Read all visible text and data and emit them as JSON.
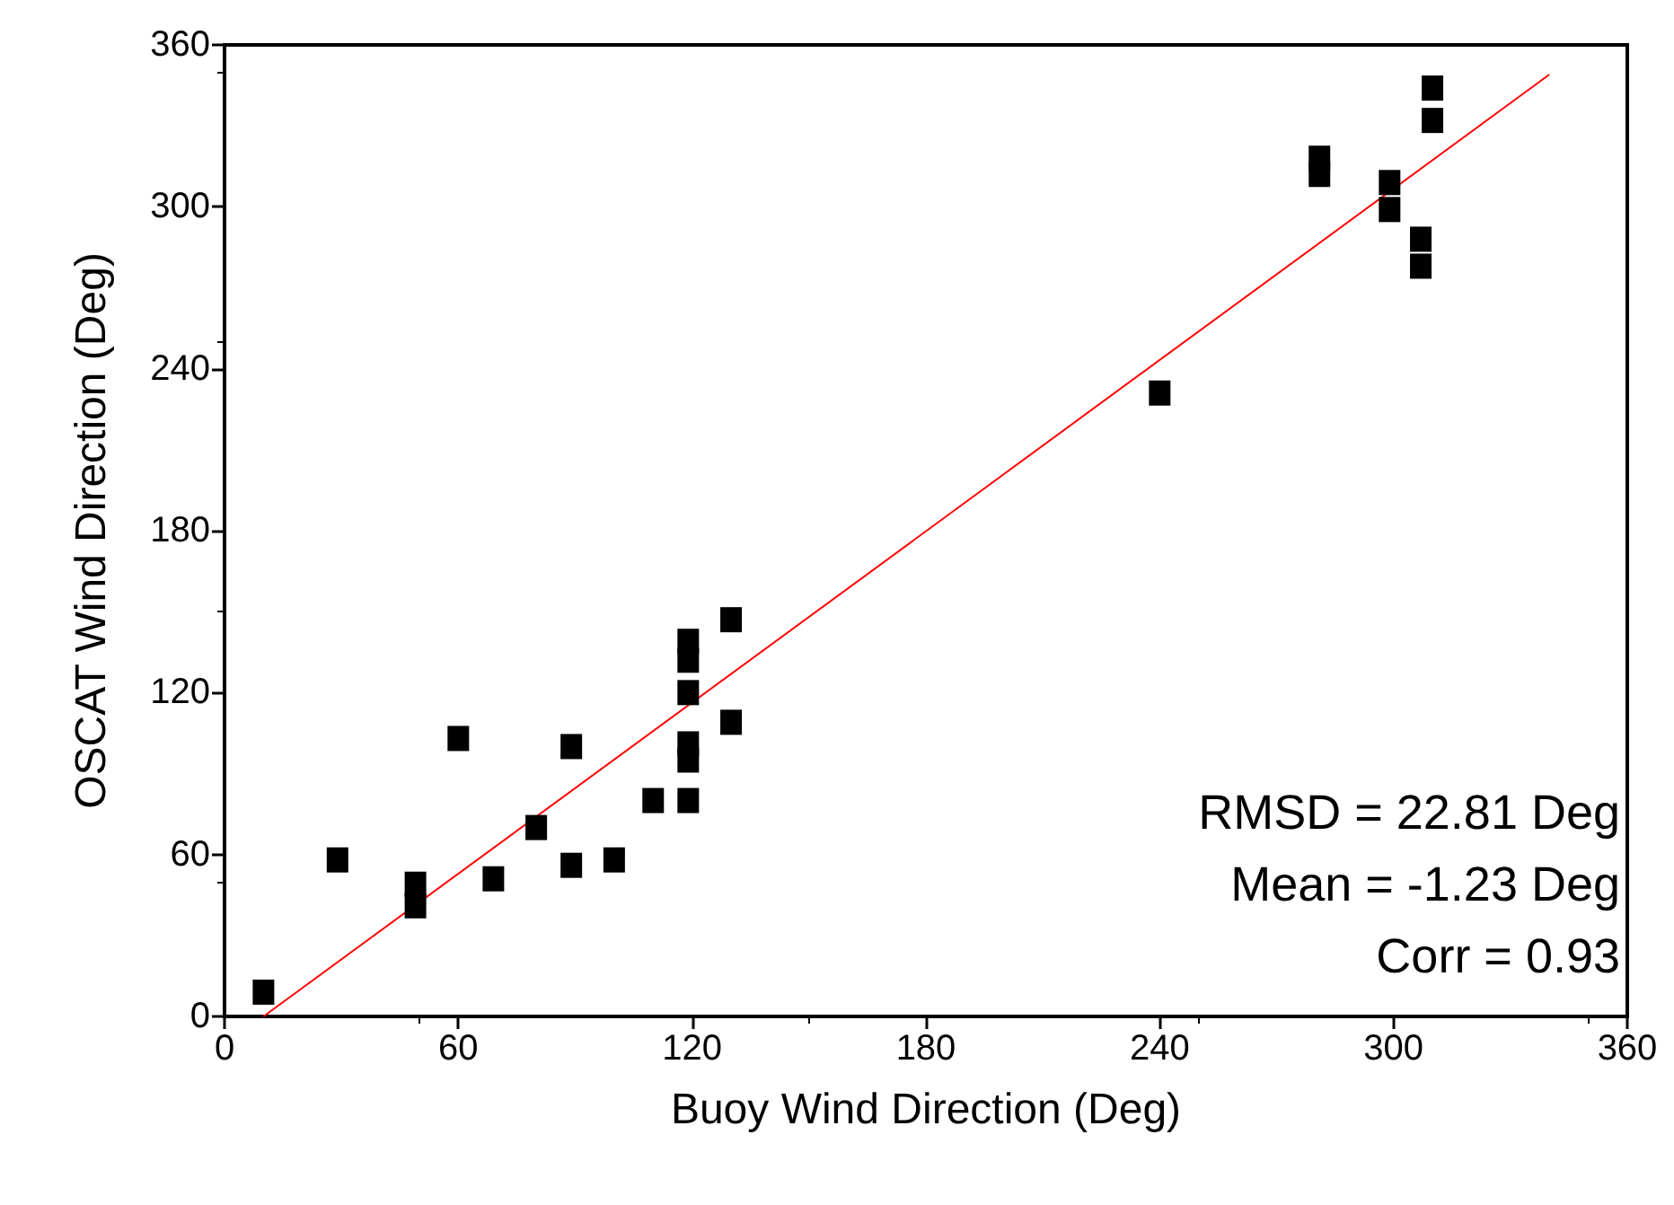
{
  "chart_data": {
    "type": "scatter",
    "xlabel": "Buoy Wind Direction (Deg)",
    "ylabel": "OSCAT Wind Direction (Deg)",
    "xlim": [
      0,
      360
    ],
    "xticks": [
      0,
      60,
      120,
      180,
      240,
      300,
      360
    ],
    "ylim": [
      0,
      360
    ],
    "yticks": [
      0,
      60,
      120,
      180,
      240,
      300,
      360
    ],
    "grid": false,
    "series": [
      {
        "marker": "square",
        "color": "#000000",
        "x": [
          10,
          29,
          49,
          49,
          60,
          69,
          80,
          89,
          89,
          100,
          110,
          119,
          119,
          119,
          119,
          119,
          119,
          130,
          130,
          240,
          281,
          281,
          299,
          299,
          307,
          307,
          310,
          310
        ],
        "values": [
          9,
          58,
          49,
          41,
          103,
          51,
          70,
          100,
          56,
          58,
          80,
          80,
          101,
          95,
          120,
          139,
          132,
          109,
          147,
          231,
          318,
          312,
          309,
          299,
          288,
          278,
          344,
          332
        ]
      },
      {
        "type": "line",
        "color": "#ff0000",
        "x": [
          10,
          340
        ],
        "values": [
          0,
          349
        ]
      }
    ],
    "annotations": [
      "RMSD = 22.81 Deg",
      "Mean = -1.23 Deg",
      "Corr = 0.93"
    ]
  }
}
